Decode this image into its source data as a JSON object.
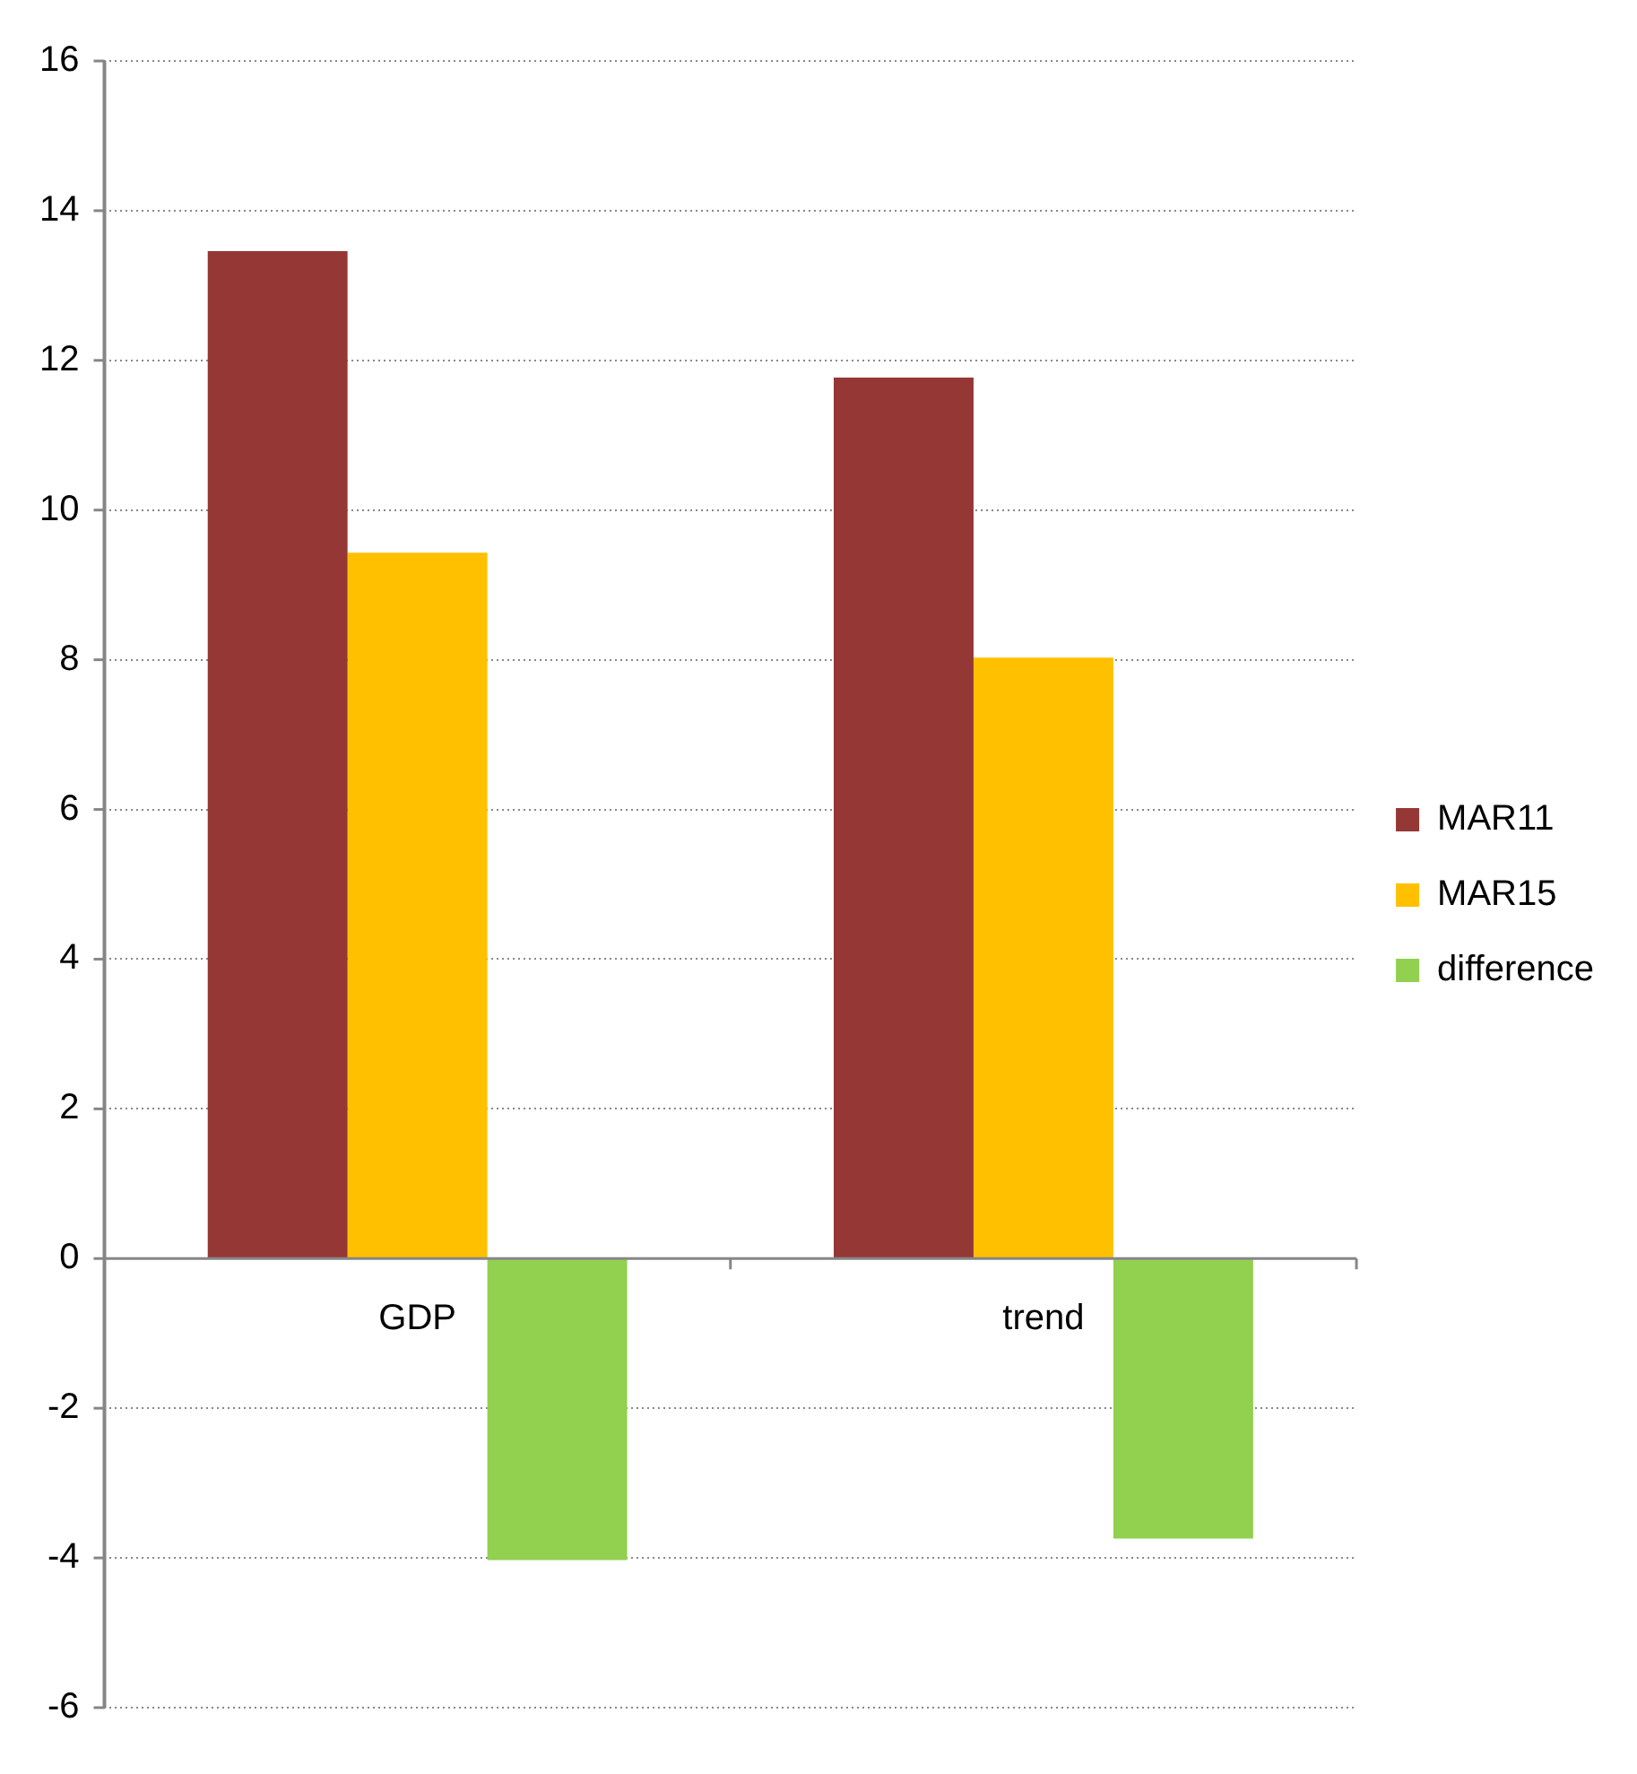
{
  "chart_data": {
    "type": "bar",
    "categories": [
      "GDP",
      "trend"
    ],
    "series": [
      {
        "name": "MAR11",
        "color": "#953735",
        "values": [
          13.46,
          11.77
        ]
      },
      {
        "name": "MAR15",
        "color": "#ffc000",
        "values": [
          9.43,
          8.03
        ]
      },
      {
        "name": "difference",
        "color": "#92d050",
        "values": [
          -4.03,
          -3.74
        ]
      }
    ],
    "ylim": [
      -6,
      16
    ],
    "yticks": [
      -6,
      -4,
      -2,
      0,
      2,
      4,
      6,
      8,
      10,
      12,
      14,
      16
    ],
    "grid": "y",
    "legend": "right"
  }
}
